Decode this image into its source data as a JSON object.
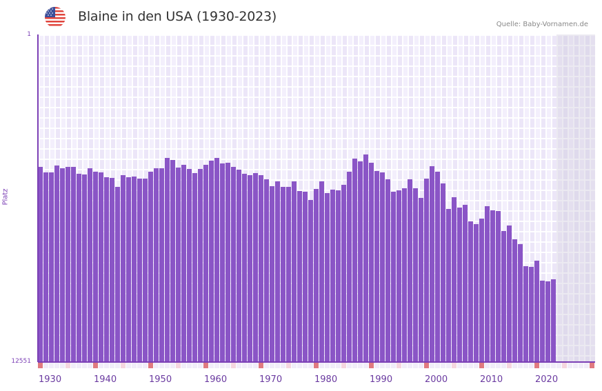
{
  "header": {
    "title": "Blaine in den USA (1930-2023)",
    "source": "Quelle: Baby-Vornamen.de",
    "flag_icon": "us-flag-icon"
  },
  "colors": {
    "bar": "#8a55c6",
    "axis": "#7b3fb5",
    "marker_decade": "#e07a80",
    "marker_half": "#f5d6df",
    "grid_bg": "#f2eefb"
  },
  "chart_data": {
    "type": "bar",
    "title": "Blaine in den USA (1930-2023)",
    "xlabel": "",
    "ylabel": "Platz",
    "y_inverted": true,
    "ylim": [
      12551,
      1
    ],
    "xlim": [
      1930,
      2030
    ],
    "y_tick_labels": [
      "1",
      "12551"
    ],
    "x_tick_labels": [
      "1930",
      "1940",
      "1950",
      "1960",
      "1970",
      "1980",
      "1990",
      "2000",
      "2010",
      "2020"
    ],
    "grid": true,
    "categories": [
      1930,
      1931,
      1932,
      1933,
      1934,
      1935,
      1936,
      1937,
      1938,
      1939,
      1940,
      1941,
      1942,
      1943,
      1944,
      1945,
      1946,
      1947,
      1948,
      1949,
      1950,
      1951,
      1952,
      1953,
      1954,
      1955,
      1956,
      1957,
      1958,
      1959,
      1960,
      1961,
      1962,
      1963,
      1964,
      1965,
      1966,
      1967,
      1968,
      1969,
      1970,
      1971,
      1972,
      1973,
      1974,
      1975,
      1976,
      1977,
      1978,
      1979,
      1980,
      1981,
      1982,
      1983,
      1984,
      1985,
      1986,
      1987,
      1988,
      1989,
      1990,
      1991,
      1992,
      1993,
      1994,
      1995,
      1996,
      1997,
      1998,
      1999,
      2000,
      2001,
      2002,
      2003,
      2004,
      2005,
      2006,
      2007,
      2008,
      2009,
      2010,
      2011,
      2012,
      2013,
      2014,
      2015,
      2016,
      2017,
      2018,
      2019,
      2020,
      2021,
      2022,
      2023
    ],
    "values": [
      5074,
      5285,
      5285,
      5021,
      5127,
      5074,
      5074,
      5338,
      5364,
      5127,
      5258,
      5285,
      5470,
      5496,
      5839,
      5390,
      5470,
      5443,
      5522,
      5522,
      5258,
      5127,
      5127,
      4731,
      4810,
      5100,
      4995,
      5153,
      5311,
      5153,
      4995,
      4837,
      4731,
      4942,
      4916,
      5074,
      5179,
      5338,
      5390,
      5311,
      5390,
      5549,
      5813,
      5628,
      5839,
      5839,
      5628,
      5998,
      6024,
      6341,
      5918,
      5628,
      6077,
      5945,
      5971,
      5760,
      5258,
      4757,
      4863,
      4599,
      4916,
      5232,
      5285,
      5549,
      6024,
      5971,
      5892,
      5549,
      5892,
      6262,
      5522,
      5047,
      5258,
      5707,
      6685,
      6235,
      6632,
      6526,
      7160,
      7266,
      7054,
      6579,
      6738,
      6764,
      7530,
      7319,
      7847,
      8032,
      8878,
      8904,
      8666,
      9432,
      9459,
      9380
    ]
  }
}
